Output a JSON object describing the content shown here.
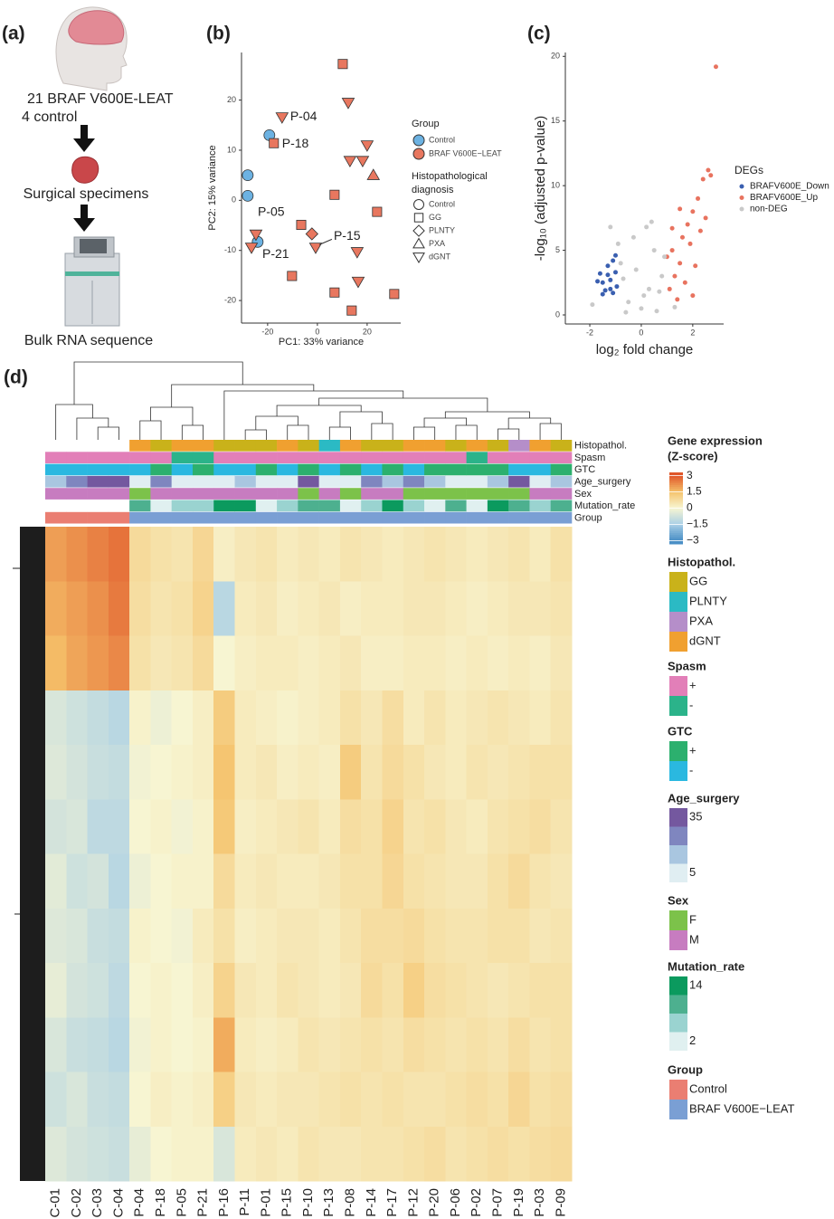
{
  "panel_labels": [
    "(a)",
    "(b)",
    "(c)",
    "(d)"
  ],
  "workflow": {
    "steps": [
      "21 BRAF V600E-LEAT",
      "4 control",
      "Surgical specimens",
      "Bulk RNA sequence"
    ]
  },
  "chart_data": [
    {
      "type": "scatter",
      "x_label": "PC1: 33% variance",
      "y_label": "PC2: 15% variance",
      "xlim": [
        -30.5,
        33.5
      ],
      "ylim": [
        -24.5,
        29.5
      ],
      "xticks": [
        -20,
        0,
        20
      ],
      "yticks": [
        -20,
        -10,
        0,
        10,
        20
      ],
      "legend_title": "Group",
      "shape_legend_title": [
        "Histopathological",
        "diagnosis"
      ],
      "shapes": [
        {
          "name": "Control",
          "shape": "circle"
        },
        {
          "name": "GG",
          "shape": "square"
        },
        {
          "name": "PLNTY",
          "shape": "diamond"
        },
        {
          "name": "PXA",
          "shape": "triangle"
        },
        {
          "name": "dGNT",
          "shape": "triangle-down"
        }
      ],
      "series": [
        {
          "name": "Control",
          "color": "#6cb2e2",
          "x": [
            -19.3,
            -28,
            -28,
            -24
          ],
          "y": [
            13,
            5,
            0.9,
            -8.3
          ],
          "shape": [
            "Control",
            "Control",
            "Control",
            "Control"
          ]
        },
        {
          "name": "BRAF V600E−LEAT",
          "color": "#e8775f",
          "x": [
            -14.2,
            -17.5,
            -24.7,
            -26.5,
            -0.7,
            -2.2,
            10.2,
            12.4,
            6.9,
            20,
            13.1,
            18.2,
            22.5,
            24,
            -6.5,
            -10.2,
            6.9,
            16.4,
            13.8,
            30.9,
            16
          ],
          "y": [
            16.6,
            11.4,
            -6.8,
            -9.4,
            -9.4,
            -6.7,
            27.2,
            19.5,
            1.1,
            11,
            7.9,
            7.9,
            5,
            -2.3,
            -4.9,
            -15.1,
            -18.4,
            -16.2,
            -22,
            -18.7,
            -10.3
          ],
          "shape": [
            "dGNT",
            "GG",
            "dGNT",
            "dGNT",
            "dGNT",
            "PLNTY",
            "GG",
            "dGNT",
            "GG",
            "dGNT",
            "dGNT",
            "dGNT",
            "PXA",
            "GG",
            "GG",
            "GG",
            "GG",
            "dGNT",
            "GG",
            "GG",
            "dGNT"
          ],
          "labels": [
            "P-04",
            "P-18",
            "P-05",
            "P-21",
            "P-15",
            null,
            null,
            null,
            null,
            null,
            null,
            null,
            null,
            null,
            null,
            null,
            null,
            null,
            null,
            null,
            null
          ]
        }
      ]
    },
    {
      "type": "scatter",
      "x_label": "log₂ fold change",
      "y_label": "-log₁₀ (adjusted p-value)",
      "xlim": [
        -2.95,
        3.2
      ],
      "ylim": [
        -0.7,
        20.3
      ],
      "xticks": [
        -2,
        0,
        2
      ],
      "yticks": [
        0,
        5,
        10,
        15,
        20
      ],
      "legend_title": "DEGs",
      "series": [
        {
          "name": "BRAFV600E_Down",
          "color": "#3a5fb0",
          "x": [
            -1.5,
            -1.3,
            -1.2,
            -1.6,
            -1.4,
            -1.1,
            -1.0,
            -1.3,
            -1.5,
            -1.2,
            -1.0,
            -1.7,
            -1.1,
            -0.95
          ],
          "y": [
            2.5,
            3.1,
            2.0,
            3.2,
            1.9,
            4.2,
            4.6,
            3.8,
            1.6,
            2.7,
            3.3,
            2.6,
            1.7,
            2.2
          ]
        },
        {
          "name": "BRAFV600E_Up",
          "color": "#e8735f",
          "x": [
            1.1,
            1.3,
            1.5,
            1.2,
            1.6,
            1.8,
            2.0,
            2.2,
            2.4,
            2.6,
            2.7,
            2.9,
            1.4,
            1.7,
            2.1,
            1.9,
            2.3,
            1.0,
            2.5,
            1.5,
            2.0,
            1.2
          ],
          "y": [
            2,
            3,
            4,
            5,
            6,
            7,
            8,
            9,
            10.5,
            11.2,
            10.8,
            19.2,
            1.2,
            2.5,
            3.8,
            5.5,
            6.5,
            4.5,
            7.5,
            8.2,
            1.5,
            6.7
          ]
        },
        {
          "name": "non-DEG",
          "color": "#c9c9c9",
          "x": [
            -0.5,
            0,
            0.3,
            -0.8,
            0.8,
            0.5,
            -0.2,
            0.2,
            -0.9,
            0.6,
            -0.6,
            0.9,
            0.1,
            -0.3,
            0.4,
            -1.2,
            -1.9,
            1.3,
            0.7,
            -0.7
          ],
          "y": [
            1,
            0.5,
            2,
            4,
            3,
            5,
            3.5,
            6.8,
            5.5,
            0.3,
            0.2,
            4.5,
            1.5,
            6,
            7.2,
            6.8,
            0.8,
            0.6,
            1.8,
            2.8
          ]
        }
      ]
    },
    {
      "type": "heatmap",
      "columns": [
        "C-01",
        "C-02",
        "C-03",
        "C-04",
        "P-04",
        "P-18",
        "P-05",
        "P-21",
        "P-16",
        "P-11",
        "P-01",
        "P-15",
        "P-10",
        "P-13",
        "P-08",
        "P-14",
        "P-17",
        "P-12",
        "P-20",
        "P-06",
        "P-02",
        "P-07",
        "P-19",
        "P-03",
        "P-09"
      ],
      "values": [
        [
          2.0,
          2.2,
          2.4,
          2.6,
          0.8,
          0.6,
          0.5,
          0.9,
          0.2,
          0.4,
          0.5,
          0.3,
          0.4,
          0.3,
          0.5,
          0.4,
          0.3,
          0.4,
          0.5,
          0.4,
          0.3,
          0.4,
          0.5,
          0.3,
          0.6
        ],
        [
          1.8,
          2.0,
          2.2,
          2.5,
          0.7,
          0.5,
          0.6,
          1.0,
          -1.2,
          0.3,
          0.4,
          0.2,
          0.3,
          0.4,
          0.2,
          0.3,
          0.3,
          0.4,
          0.4,
          0.3,
          0.2,
          0.3,
          0.4,
          0.4,
          0.5
        ],
        [
          1.6,
          1.9,
          2.1,
          2.3,
          0.6,
          0.4,
          0.5,
          0.8,
          0.0,
          0.2,
          0.3,
          0.3,
          0.2,
          0.3,
          0.4,
          0.2,
          0.2,
          0.3,
          0.3,
          0.2,
          0.3,
          0.2,
          0.3,
          0.2,
          0.4
        ],
        [
          -0.6,
          -0.8,
          -1.0,
          -1.2,
          0.1,
          -0.2,
          0.0,
          0.2,
          1.2,
          0.3,
          0.2,
          0.1,
          0.2,
          0.3,
          0.6,
          0.4,
          0.7,
          0.3,
          0.5,
          0.3,
          0.4,
          0.5,
          0.4,
          0.3,
          0.5
        ],
        [
          -0.5,
          -0.7,
          -0.9,
          -1.0,
          -0.1,
          0.0,
          0.1,
          0.2,
          1.4,
          0.3,
          0.4,
          0.2,
          0.3,
          0.2,
          1.2,
          0.5,
          0.8,
          0.6,
          0.4,
          0.3,
          0.5,
          0.4,
          0.5,
          0.6,
          0.6
        ],
        [
          -0.7,
          -0.6,
          -1.1,
          -1.1,
          0.0,
          0.1,
          -0.1,
          0.1,
          1.3,
          0.2,
          0.3,
          0.4,
          0.5,
          0.3,
          0.7,
          0.6,
          1.0,
          0.5,
          0.6,
          0.4,
          0.3,
          0.5,
          0.6,
          0.7,
          0.5
        ],
        [
          -0.4,
          -0.8,
          -0.7,
          -1.2,
          -0.2,
          0.0,
          0.1,
          0.1,
          0.8,
          0.3,
          0.4,
          0.3,
          0.3,
          0.4,
          0.6,
          0.6,
          0.9,
          0.6,
          0.5,
          0.4,
          0.4,
          0.6,
          0.8,
          0.5,
          0.4
        ],
        [
          -0.5,
          -0.6,
          -0.9,
          -1.0,
          0.1,
          0.0,
          -0.1,
          0.3,
          0.6,
          0.2,
          0.3,
          0.4,
          0.4,
          0.3,
          0.5,
          0.7,
          0.7,
          0.8,
          0.6,
          0.5,
          0.5,
          0.6,
          0.6,
          0.4,
          0.5
        ],
        [
          -0.3,
          -0.7,
          -0.8,
          -1.1,
          0.0,
          0.1,
          0.0,
          0.2,
          1.0,
          0.4,
          0.3,
          0.5,
          0.4,
          0.3,
          0.4,
          0.8,
          0.6,
          1.1,
          0.7,
          0.6,
          0.5,
          0.4,
          0.5,
          0.6,
          0.6
        ],
        [
          -0.6,
          -0.9,
          -1.0,
          -1.2,
          -0.1,
          0.1,
          0.0,
          0.1,
          1.8,
          0.3,
          0.2,
          0.3,
          0.5,
          0.4,
          0.5,
          0.6,
          0.5,
          0.7,
          0.6,
          0.5,
          0.6,
          0.5,
          0.7,
          0.5,
          0.6
        ],
        [
          -0.8,
          -0.6,
          -0.9,
          -1.0,
          0.0,
          0.2,
          0.1,
          0.2,
          1.1,
          0.4,
          0.3,
          0.4,
          0.4,
          0.5,
          0.6,
          0.5,
          0.6,
          0.5,
          0.5,
          0.6,
          0.7,
          0.6,
          0.9,
          0.6,
          0.7
        ],
        [
          -0.5,
          -0.7,
          -0.8,
          -0.9,
          -0.3,
          0.0,
          0.1,
          0.1,
          -0.6,
          0.3,
          0.4,
          0.3,
          0.5,
          0.4,
          0.4,
          0.5,
          0.5,
          0.6,
          0.7,
          0.5,
          0.6,
          0.7,
          0.6,
          0.7,
          0.8
        ]
      ],
      "scale": {
        "title": [
          "Gene expression",
          "(Z-score)"
        ],
        "lim": [
          -3.3,
          3.3
        ],
        "ticks": [
          3,
          1.5,
          0,
          {
            "value": -1.5,
            "label": "−1.5"
          },
          {
            "value": -3,
            "label": "−3"
          }
        ],
        "colors": [
          "#e0562a",
          "#f5c26a",
          "#f7f5d2",
          "#a9cfe6",
          "#4a8fc6"
        ]
      },
      "annotations": [
        {
          "name": "Histopathol.",
          "levels": [
            {
              "label": "GG",
              "color": "#c9b21a"
            },
            {
              "label": "PLNTY",
              "color": "#2bbac4"
            },
            {
              "label": "PXA",
              "color": "#b58ec9"
            },
            {
              "label": "dGNT",
              "color": "#f0a030"
            }
          ],
          "values": [
            null,
            null,
            null,
            null,
            "dGNT",
            "GG",
            "dGNT",
            "dGNT",
            "GG",
            "GG",
            "GG",
            "dGNT",
            "GG",
            "PLNTY",
            "dGNT",
            "GG",
            "GG",
            "dGNT",
            "dGNT",
            "GG",
            "dGNT",
            "GG",
            "PXA",
            "dGNT",
            "GG"
          ]
        },
        {
          "name": "Spasm",
          "levels": [
            {
              "label": "+",
              "color": "#e27fb8"
            },
            {
              "label": "-",
              "color": "#2bb38a"
            }
          ],
          "values": [
            "+",
            "+",
            "+",
            "+",
            "+",
            "+",
            "-",
            "-",
            "+",
            "+",
            "+",
            "+",
            "+",
            "+",
            "+",
            "+",
            "+",
            "+",
            "+",
            "+",
            "-",
            "+",
            "+",
            "+",
            "+"
          ]
        },
        {
          "name": "GTC",
          "levels": [
            {
              "label": "+",
              "color": "#2cb06e"
            },
            {
              "label": "-",
              "color": "#2ab8e0"
            }
          ],
          "values": [
            "-",
            "-",
            "-",
            "-",
            "-",
            "+",
            "-",
            "+",
            "-",
            "-",
            "+",
            "-",
            "+",
            "-",
            "+",
            "-",
            "+",
            "-",
            "+",
            "+",
            "+",
            "+",
            "-",
            "-",
            "+"
          ]
        },
        {
          "name": "Age_surgery",
          "lim": [
            5,
            35
          ],
          "legend_ticks": [
            35,
            5
          ],
          "colors": [
            "#e0eef2",
            "#a9c6e0",
            "#7f86bf",
            "#74589f"
          ],
          "values": [
            15,
            20,
            28,
            34,
            12,
            26,
            8,
            6,
            10,
            18,
            6,
            9,
            32,
            12,
            8,
            22,
            16,
            24,
            14,
            10,
            12,
            18,
            30,
            8,
            16
          ]
        },
        {
          "name": "Sex",
          "levels": [
            {
              "label": "F",
              "color": "#7cc24a"
            },
            {
              "label": "M",
              "color": "#c77cc0"
            }
          ],
          "values": [
            "M",
            "M",
            "M",
            "M",
            "F",
            "M",
            "M",
            "M",
            "M",
            "M",
            "M",
            "M",
            "F",
            "M",
            "F",
            "M",
            "M",
            "F",
            "F",
            "F",
            "F",
            "F",
            "F",
            "M",
            "M"
          ]
        },
        {
          "name": "Mutation_rate",
          "lim": [
            2,
            14
          ],
          "legend_ticks": [
            14,
            2
          ],
          "colors": [
            "#e0f0f0",
            "#9ad3d0",
            "#4db08f",
            "#0b9a5e"
          ],
          "values": [
            null,
            null,
            null,
            null,
            8,
            4,
            5,
            6,
            14,
            12,
            4,
            6,
            10,
            8,
            4,
            5,
            14,
            6,
            3,
            8,
            4,
            12,
            9,
            5,
            10
          ]
        },
        {
          "name": "Group",
          "levels": [
            {
              "label": "Control",
              "color": "#ea7e72"
            },
            {
              "label": "BRAF V600E−LEAT",
              "color": "#7a9fd4"
            }
          ],
          "values": [
            "Control",
            "Control",
            "Control",
            "Control",
            "BRAF V600E−LEAT",
            "BRAF V600E−LEAT",
            "BRAF V600E−LEAT",
            "BRAF V600E−LEAT",
            "BRAF V600E−LEAT",
            "BRAF V600E−LEAT",
            "BRAF V600E−LEAT",
            "BRAF V600E−LEAT",
            "BRAF V600E−LEAT",
            "BRAF V600E−LEAT",
            "BRAF V600E−LEAT",
            "BRAF V600E−LEAT",
            "BRAF V600E−LEAT",
            "BRAF V600E−LEAT",
            "BRAF V600E−LEAT",
            "BRAF V600E−LEAT",
            "BRAF V600E−LEAT",
            "BRAF V600E−LEAT",
            "BRAF V600E−LEAT",
            "BRAF V600E−LEAT",
            "BRAF V600E−LEAT"
          ]
        }
      ]
    }
  ]
}
